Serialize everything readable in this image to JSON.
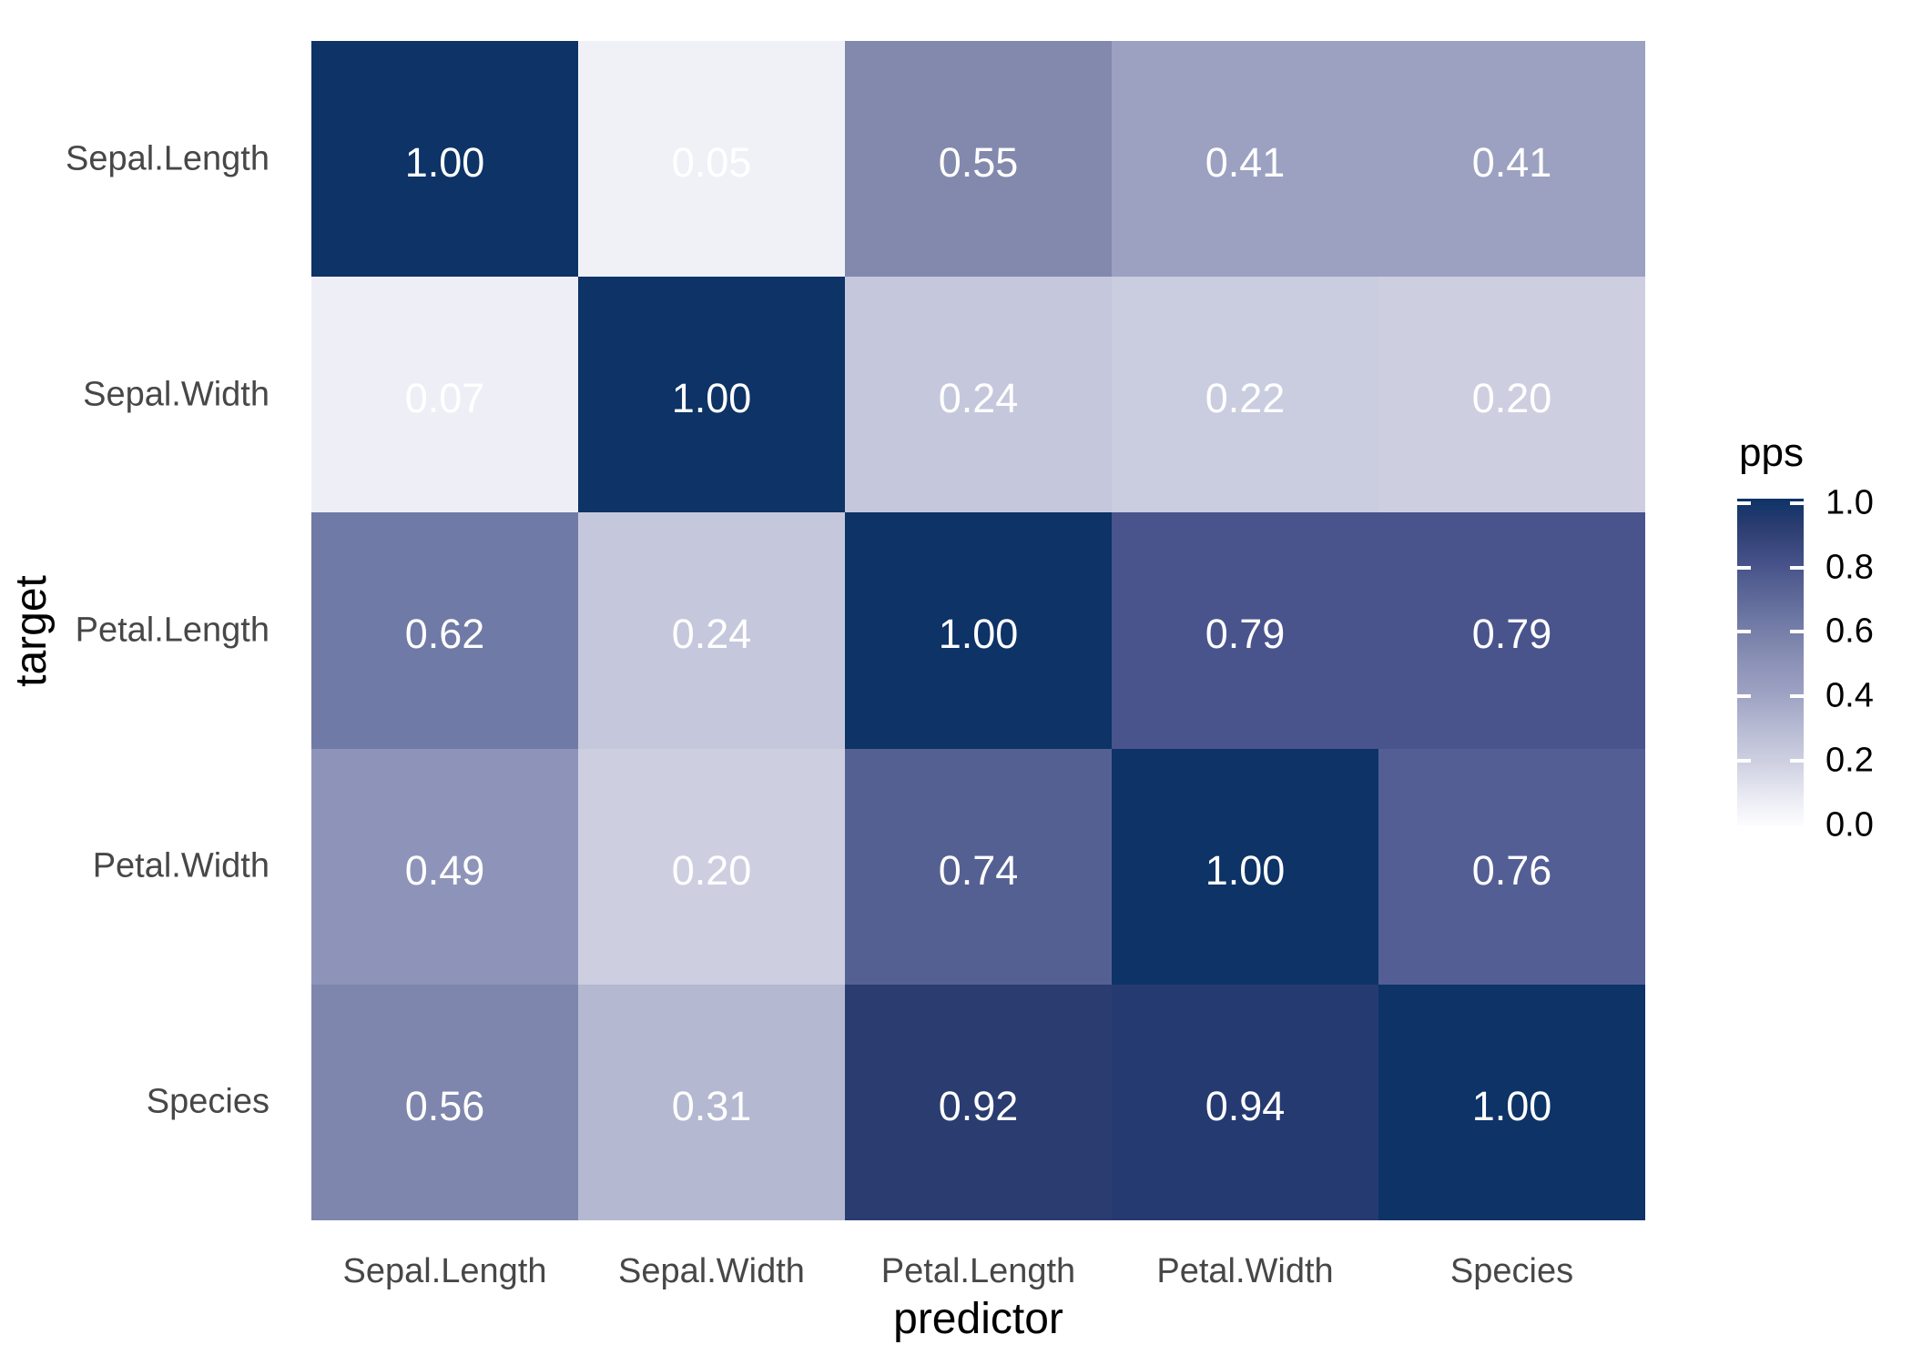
{
  "figure": {
    "background": "#FFFFFF"
  },
  "chart_data": {
    "type": "heatmap",
    "title": "",
    "xlabel": "predictor",
    "ylabel": "target",
    "x_categories": [
      "Sepal.Length",
      "Sepal.Width",
      "Petal.Length",
      "Petal.Width",
      "Species"
    ],
    "y_categories": [
      "Sepal.Length",
      "Sepal.Width",
      "Petal.Length",
      "Petal.Width",
      "Species"
    ],
    "values": [
      [
        1.0,
        0.05,
        0.55,
        0.41,
        0.41
      ],
      [
        0.07,
        1.0,
        0.24,
        0.22,
        0.2
      ],
      [
        0.62,
        0.24,
        1.0,
        0.79,
        0.79
      ],
      [
        0.49,
        0.2,
        0.74,
        1.0,
        0.76
      ],
      [
        0.56,
        0.31,
        0.92,
        0.94,
        1.0
      ]
    ],
    "cell_colors": [
      [
        "#0D3367",
        "#F0F1F7",
        "#8289AD",
        "#9CA1C2",
        "#9CA1C2"
      ],
      [
        "#EEEFF6",
        "#0D3367",
        "#C5C8DC",
        "#CACCDF",
        "#CDCFE1"
      ],
      [
        "#707AA6",
        "#C5C8DC",
        "#0D3367",
        "#49548C",
        "#49548C"
      ],
      [
        "#8E94B9",
        "#CDCFE1",
        "#556092",
        "#0D3367",
        "#535F94"
      ],
      [
        "#7E86AD",
        "#B4B8D1",
        "#2A3C70",
        "#253A71",
        "#0D3367"
      ]
    ],
    "cell_text_color": "#FFFFFF",
    "axis_tick_label_color": "#474747",
    "axis_title_color": "#000000",
    "value_range": [
      0.0,
      1.0
    ],
    "grid": "off",
    "legend_position": "right",
    "legend": {
      "title": "pps",
      "ticks": [
        {
          "label": "1.0",
          "value": 1.0
        },
        {
          "label": "0.8",
          "value": 0.8
        },
        {
          "label": "0.6",
          "value": 0.6
        },
        {
          "label": "0.4",
          "value": 0.4
        },
        {
          "label": "0.2",
          "value": 0.2
        },
        {
          "label": "0.0",
          "value": 0.0
        }
      ],
      "gradient_stops": [
        {
          "pos": 0.0,
          "color": "#FDFDFF"
        },
        {
          "pos": 0.07,
          "color": "#EEEFF6"
        },
        {
          "pos": 0.2,
          "color": "#CDCFE1"
        },
        {
          "pos": 0.31,
          "color": "#B4B8D1"
        },
        {
          "pos": 0.41,
          "color": "#9CA1C2"
        },
        {
          "pos": 0.49,
          "color": "#8E94B9"
        },
        {
          "pos": 0.56,
          "color": "#7E86AD"
        },
        {
          "pos": 0.62,
          "color": "#707AA6"
        },
        {
          "pos": 0.74,
          "color": "#556092"
        },
        {
          "pos": 0.79,
          "color": "#49548C"
        },
        {
          "pos": 0.92,
          "color": "#2A3C70"
        },
        {
          "pos": 1.0,
          "color": "#0D3367"
        }
      ]
    }
  }
}
